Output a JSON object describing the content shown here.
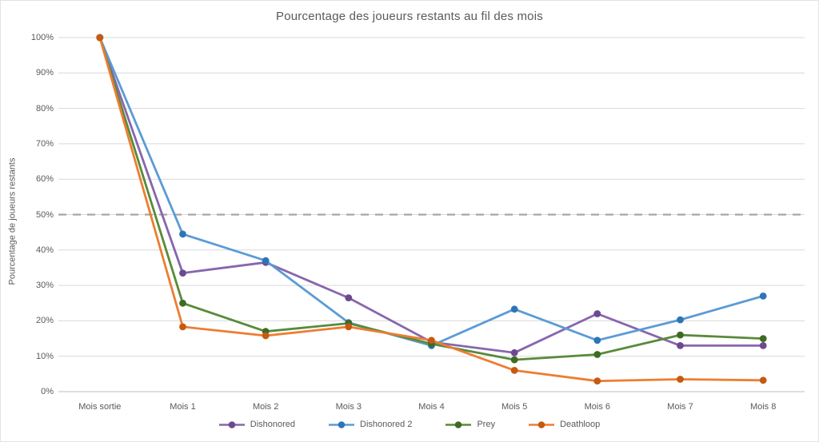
{
  "chart_data": {
    "type": "line",
    "title": "Pourcentage des joueurs restants au fil des mois",
    "ylabel": "Pourcentage de joueurs restants",
    "xlabel": "",
    "categories": [
      "Mois sortie",
      "Mois 1",
      "Mois 2",
      "Mois 3",
      "Mois 4",
      "Mois 5",
      "Mois 6",
      "Mois 7",
      "Mois 8"
    ],
    "y_ticks": [
      "0%",
      "10%",
      "20%",
      "30%",
      "40%",
      "50%",
      "60%",
      "70%",
      "80%",
      "90%",
      "100%"
    ],
    "ylim": [
      0,
      100
    ],
    "grid": true,
    "legend_position": "bottom",
    "reference_line": {
      "value": 50,
      "style": "dashed",
      "color": "#A6A6A6"
    },
    "colors": {
      "gridline": "#D9D9D9",
      "axis_line": "#BFBFBF",
      "text": "#595959"
    },
    "series": [
      {
        "name": "Dishonored",
        "color": "#8766AE",
        "marker_color": "#6B4A8F",
        "values": [
          100,
          33.5,
          36.5,
          26.5,
          14,
          11,
          22,
          13,
          13
        ]
      },
      {
        "name": "Dishonored 2",
        "color": "#5B9BD5",
        "marker_color": "#2E75B6",
        "values": [
          100,
          44.5,
          37,
          19.5,
          13,
          23.3,
          14.5,
          20.3,
          27
        ]
      },
      {
        "name": "Prey",
        "color": "#588B3A",
        "marker_color": "#3E6B24",
        "values": [
          100,
          25,
          17,
          19.3,
          13.5,
          9,
          10.5,
          16,
          15
        ]
      },
      {
        "name": "Deathloop",
        "color": "#ED7D31",
        "marker_color": "#C55A11",
        "values": [
          100,
          18.3,
          15.8,
          18.3,
          14.5,
          6,
          3,
          3.5,
          3.2
        ]
      }
    ]
  }
}
